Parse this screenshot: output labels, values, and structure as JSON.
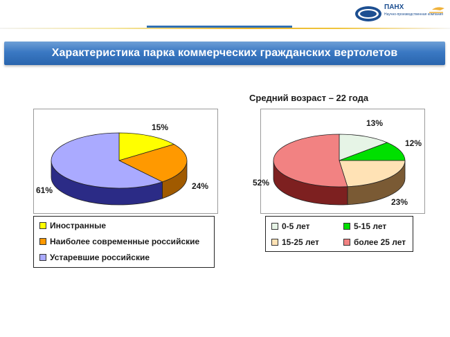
{
  "logo": {
    "name": "ПАНХ",
    "subtitle": "Научно-производственная компания",
    "emblem_text": "ПАНХ",
    "brand_color": "#1d4f91",
    "accent_color": "#f0b23a"
  },
  "header": {
    "title": "Характеристика парка коммерческих гражданских вертолетов"
  },
  "chart_data": [
    {
      "type": "pie",
      "title": "",
      "categories": [
        "Иностранные",
        "Наиболее современные российские",
        "Устаревшие российские"
      ],
      "values": [
        15,
        24,
        61
      ],
      "labels": [
        "15%",
        "24%",
        "61%"
      ],
      "colors": [
        "#ffff00",
        "#ff9900",
        "#aaaaff"
      ],
      "dark_colors": [
        "#a0a000",
        "#a05a00",
        "#2b2b86"
      ],
      "legend_position": "bottom"
    },
    {
      "type": "pie",
      "title": "Средний возраст – 22 года",
      "categories": [
        "0-5 лет",
        "5-15 лет",
        "15-25 лет",
        "более 25 лет"
      ],
      "values": [
        13,
        12,
        23,
        52
      ],
      "labels": [
        "13%",
        "12%",
        "23%",
        "52%"
      ],
      "colors": [
        "#e6f4e6",
        "#00e000",
        "#ffe2b5",
        "#f28282"
      ],
      "dark_colors": [
        "#9aa79a",
        "#008a00",
        "#7a5a34",
        "#7d2020"
      ],
      "legend_position": "bottom"
    }
  ]
}
